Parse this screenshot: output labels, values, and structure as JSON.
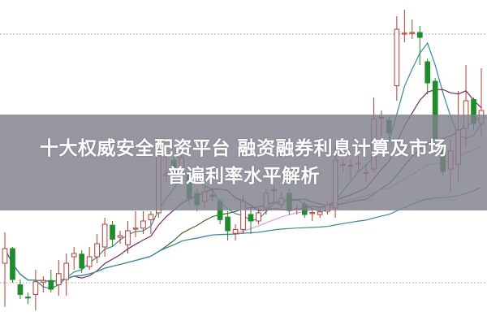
{
  "title": {
    "line1": "十大权威安全配资平台 融资融券利息计算及市场",
    "line2": "普遍利率水平解析"
  },
  "colors": {
    "up": "#c0392b",
    "down": "#1e8c28",
    "grid": "#999999",
    "banner": "#80808e"
  },
  "chart_data": {
    "type": "candlestick",
    "title": "",
    "grid": "horizontal-dotted",
    "ylim": [
      0,
      100
    ],
    "candles": [
      {
        "o": 19,
        "c": 23.5,
        "h": 28.5,
        "l": 5.6
      },
      {
        "o": 23.5,
        "c": 14,
        "h": 24,
        "l": 13
      },
      {
        "o": 12.4,
        "c": 9.4,
        "h": 14,
        "l": 8
      },
      {
        "o": 8.6,
        "c": 8.5,
        "h": 10,
        "l": 6.5
      },
      {
        "o": 9.4,
        "c": 13.3,
        "h": 17,
        "l": 4.5
      },
      {
        "o": 13.2,
        "c": 13.7,
        "h": 15,
        "l": 10
      },
      {
        "o": 13.7,
        "c": 11,
        "h": 17,
        "l": 10
      },
      {
        "o": 12.4,
        "c": 15.8,
        "h": 20,
        "l": 9
      },
      {
        "o": 14,
        "c": 19,
        "h": 22,
        "l": 9
      },
      {
        "o": 21,
        "c": 22,
        "h": 24,
        "l": 17
      },
      {
        "o": 21.8,
        "c": 17.5,
        "h": 23,
        "l": 16
      },
      {
        "o": 18,
        "c": 21,
        "h": 24,
        "l": 17
      },
      {
        "o": 21,
        "c": 25,
        "h": 28,
        "l": 19
      },
      {
        "o": 24,
        "c": 31,
        "h": 33,
        "l": 21
      },
      {
        "o": 30.7,
        "c": 26.4,
        "h": 32,
        "l": 24
      },
      {
        "o": 27,
        "c": 27.5,
        "h": 29,
        "l": 25
      },
      {
        "o": 24.7,
        "c": 29,
        "h": 32,
        "l": 22
      },
      {
        "o": 29.5,
        "c": 29.8,
        "h": 35,
        "l": 27
      },
      {
        "o": 29.8,
        "c": 32,
        "h": 35,
        "l": 28
      },
      {
        "o": 32.4,
        "c": 34,
        "h": 35,
        "l": 28
      },
      {
        "o": 34.5,
        "c": 52,
        "h": 56,
        "l": 33
      },
      {
        "o": 46,
        "c": 46.5,
        "h": 52,
        "l": 44
      },
      {
        "o": 50.7,
        "c": 45.6,
        "h": 52,
        "l": 44
      },
      {
        "o": 48,
        "c": 51.5,
        "h": 54,
        "l": 46
      },
      {
        "o": 47,
        "c": 39,
        "h": 49,
        "l": 37
      },
      {
        "o": 40.5,
        "c": 37,
        "h": 42,
        "l": 35
      },
      {
        "o": 38,
        "c": 41,
        "h": 43,
        "l": 36
      },
      {
        "o": 40,
        "c": 39.5,
        "h": 42,
        "l": 38
      },
      {
        "o": 38,
        "c": 32.4,
        "h": 39,
        "l": 31
      },
      {
        "o": 33.2,
        "c": 29,
        "h": 35,
        "l": 26
      },
      {
        "o": 28.2,
        "c": 29.4,
        "h": 31,
        "l": 26
      },
      {
        "o": 29.4,
        "c": 38,
        "h": 40,
        "l": 28
      },
      {
        "o": 34,
        "c": 32,
        "h": 36,
        "l": 28
      },
      {
        "o": 32,
        "c": 34.5,
        "h": 36,
        "l": 31
      },
      {
        "o": 36,
        "c": 40.5,
        "h": 42,
        "l": 34
      },
      {
        "o": 41.5,
        "c": 41.7,
        "h": 43,
        "l": 38
      },
      {
        "o": 37,
        "c": 39,
        "h": 41,
        "l": 36
      },
      {
        "o": 40.5,
        "c": 35.4,
        "h": 42,
        "l": 34
      },
      {
        "o": 35.6,
        "c": 35.8,
        "h": 37,
        "l": 34
      },
      {
        "o": 37,
        "c": 34,
        "h": 38,
        "l": 33
      },
      {
        "o": 34.5,
        "c": 34.6,
        "h": 36,
        "l": 32
      },
      {
        "o": 34,
        "c": 34.8,
        "h": 36,
        "l": 33
      },
      {
        "o": 35,
        "c": 37,
        "h": 38,
        "l": 34
      },
      {
        "o": 36,
        "c": 50.7,
        "h": 55,
        "l": 33
      },
      {
        "o": 49.3,
        "c": 49.4,
        "h": 51,
        "l": 47
      },
      {
        "o": 49,
        "c": 49.1,
        "h": 51,
        "l": 45
      },
      {
        "o": 49.6,
        "c": 49.8,
        "h": 52,
        "l": 47
      },
      {
        "o": 46.8,
        "c": 46.9,
        "h": 49,
        "l": 44
      },
      {
        "o": 48,
        "c": 63.4,
        "h": 70,
        "l": 47
      },
      {
        "o": 63.8,
        "c": 63.9,
        "h": 66,
        "l": 58
      },
      {
        "o": 63,
        "c": 59,
        "h": 64,
        "l": 57
      },
      {
        "o": 73.6,
        "c": 91,
        "h": 95,
        "l": 69
      },
      {
        "o": 89.7,
        "c": 89.8,
        "h": 97,
        "l": 87
      },
      {
        "o": 89.9,
        "c": 90,
        "h": 94,
        "l": 88
      },
      {
        "o": 90,
        "c": 88.5,
        "h": 92,
        "l": 80
      },
      {
        "o": 81,
        "c": 74.5,
        "h": 82,
        "l": 71
      },
      {
        "o": 75,
        "c": 57,
        "h": 76,
        "l": 55
      },
      {
        "o": 53.6,
        "c": 47.3,
        "h": 56,
        "l": 46
      },
      {
        "o": 48,
        "c": 53.6,
        "h": 57,
        "l": 41
      },
      {
        "o": 49.4,
        "c": 60,
        "h": 72,
        "l": 44
      },
      {
        "o": 60.5,
        "c": 69,
        "h": 80,
        "l": 55
      },
      {
        "o": 69.4,
        "c": 62,
        "h": 70,
        "l": 60
      },
      {
        "o": 62,
        "c": 66,
        "h": 79,
        "l": 58
      }
    ],
    "moving_averages": [
      {
        "period": 5,
        "color": "#2a8f9a"
      },
      {
        "period": 10,
        "color": "#7a2a5a"
      },
      {
        "period": 20,
        "color": "#3a6e2a"
      },
      {
        "period": 30,
        "color": "#e09ae0"
      },
      {
        "period": 60,
        "color": "#2a8f9a"
      }
    ]
  }
}
